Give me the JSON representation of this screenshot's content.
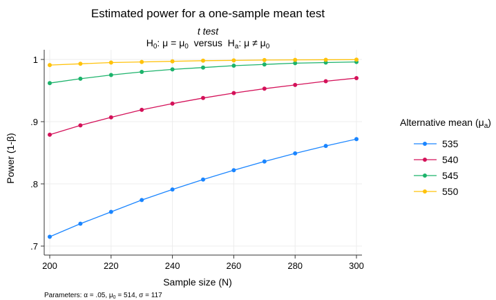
{
  "chart_data": {
    "type": "line",
    "title": "Estimated power for a one-sample mean test",
    "subtitle_line1": "t test",
    "subtitle_line2": {
      "h0": "H",
      "h0_sub": "0",
      "h0_rest1": ": μ = μ",
      "h0_rest_sub": "0",
      "versus": "  versus  ",
      "ha": "H",
      "ha_sub": "a",
      "ha_rest1": ": μ ≠ μ",
      "ha_rest_sub": "0"
    },
    "xlabel": "Sample size (N)",
    "ylabel": "Power (1-β)",
    "xlim": [
      200,
      300
    ],
    "ylim": [
      0.7,
      1.0
    ],
    "x_ticks": [
      200,
      220,
      240,
      260,
      280,
      300
    ],
    "x_tick_labels": [
      "200",
      "220",
      "240",
      "260",
      "280",
      "300"
    ],
    "y_ticks": [
      0.7,
      0.8,
      0.9,
      1.0
    ],
    "y_tick_labels": [
      ".7",
      ".8",
      ".9",
      "1"
    ],
    "grid": true,
    "legend_position": "right",
    "legend_title": {
      "text": "Alternative mean (μ",
      "sub": "a",
      "close": ")"
    },
    "x": [
      200,
      210,
      220,
      230,
      240,
      250,
      260,
      270,
      280,
      290,
      300
    ],
    "series": [
      {
        "name": "535",
        "color": "#1a85ff",
        "values": [
          0.715,
          0.736,
          0.755,
          0.774,
          0.791,
          0.807,
          0.822,
          0.836,
          0.849,
          0.861,
          0.872
        ]
      },
      {
        "name": "540",
        "color": "#d41159",
        "values": [
          0.879,
          0.894,
          0.907,
          0.919,
          0.929,
          0.938,
          0.946,
          0.953,
          0.959,
          0.965,
          0.97
        ]
      },
      {
        "name": "545",
        "color": "#1cb36b",
        "values": [
          0.962,
          0.969,
          0.975,
          0.98,
          0.984,
          0.987,
          0.99,
          0.992,
          0.994,
          0.995,
          0.996
        ]
      },
      {
        "name": "550",
        "color": "#ffc20a",
        "values": [
          0.991,
          0.993,
          0.995,
          0.996,
          0.997,
          0.998,
          0.9985,
          0.999,
          0.9993,
          0.9995,
          0.9997
        ]
      }
    ],
    "note": {
      "p1": "Parameters: α = .05, μ",
      "p1_sub": "0",
      "p2": " = 514, σ = 117"
    }
  }
}
